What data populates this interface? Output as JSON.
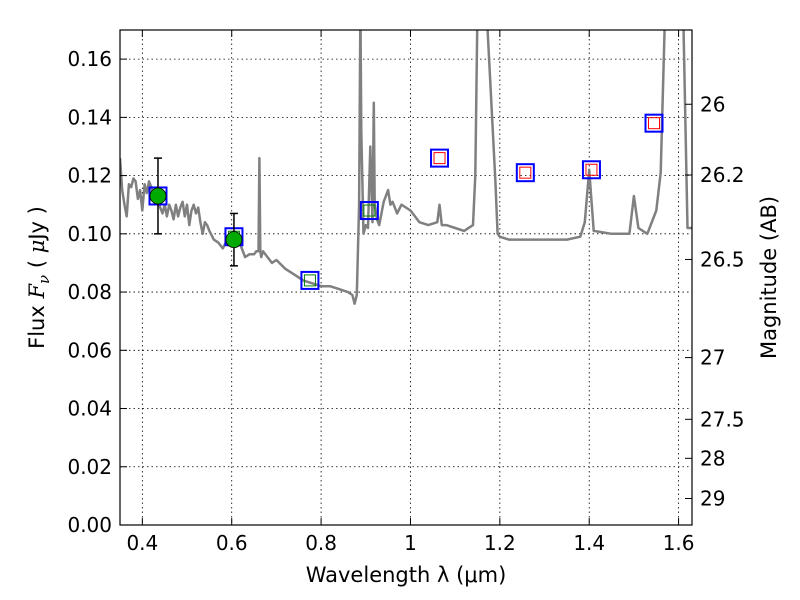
{
  "chart_data": {
    "type": "line",
    "xlabel": "Wavelength  λ (μm)",
    "ylabel": "Flux  F_ν  ( μJy )",
    "ylabel_parts": [
      "Flux  ",
      "F",
      "ν",
      "  ( ",
      "μ",
      "Jy )"
    ],
    "y2label": "Magnitude (AB)",
    "xlim": [
      0.35,
      1.63
    ],
    "ylim": [
      0.0,
      0.17
    ],
    "x_ticks": [
      0.4,
      0.6,
      0.8,
      1.0,
      1.2,
      1.4,
      1.6
    ],
    "x_tick_labels": [
      "0.4",
      "0.6",
      "0.8",
      "1",
      "1.2",
      "1.4",
      "1.6"
    ],
    "y_ticks": [
      0.0,
      0.02,
      0.04,
      0.06,
      0.08,
      0.1,
      0.12,
      0.14,
      0.16
    ],
    "y_tick_labels": [
      "0.00",
      "0.02",
      "0.04",
      "0.06",
      "0.08",
      "0.10",
      "0.12",
      "0.14",
      "0.16"
    ],
    "y2_ticks": [
      {
        "flux": 0.1445,
        "label": "26"
      },
      {
        "flux": 0.1202,
        "label": "26.2"
      },
      {
        "flux": 0.0912,
        "label": "26.5"
      },
      {
        "flux": 0.0575,
        "label": "27"
      },
      {
        "flux": 0.0363,
        "label": "27.5"
      },
      {
        "flux": 0.0229,
        "label": "28"
      },
      {
        "flux": 0.0091,
        "label": "29"
      }
    ],
    "grid": true,
    "colors": {
      "spectrum": "#808080",
      "observed_fill": "#00aa00",
      "model_box": "#0000ff",
      "model_box_fill": "#ffffff",
      "inner_green": "#008000",
      "inner_red": "#ff0000",
      "errorbar": "#000000"
    },
    "series": [
      {
        "kind": "spectrum",
        "x": [
          0.35,
          0.355,
          0.36,
          0.365,
          0.37,
          0.375,
          0.38,
          0.385,
          0.39,
          0.395,
          0.4,
          0.405,
          0.41,
          0.415,
          0.42,
          0.425,
          0.43,
          0.435,
          0.44,
          0.445,
          0.45,
          0.455,
          0.46,
          0.465,
          0.47,
          0.475,
          0.48,
          0.485,
          0.49,
          0.495,
          0.5,
          0.505,
          0.51,
          0.515,
          0.52,
          0.525,
          0.53,
          0.535,
          0.54,
          0.545,
          0.55,
          0.56,
          0.57,
          0.58,
          0.59,
          0.6,
          0.61,
          0.62,
          0.63,
          0.64,
          0.65,
          0.655,
          0.66,
          0.662,
          0.664,
          0.666,
          0.67,
          0.68,
          0.69,
          0.7,
          0.72,
          0.74,
          0.76,
          0.78,
          0.8,
          0.82,
          0.84,
          0.86,
          0.87,
          0.875,
          0.88,
          0.885,
          0.888,
          0.89,
          0.895,
          0.9,
          0.905,
          0.91,
          0.915,
          0.918,
          0.92,
          0.925,
          0.93,
          0.94,
          0.95,
          0.955,
          0.96,
          0.97,
          0.98,
          1.0,
          1.02,
          1.04,
          1.06,
          1.065,
          1.07,
          1.08,
          1.1,
          1.12,
          1.14,
          1.145,
          1.15,
          1.16,
          1.17,
          1.19,
          1.195,
          1.2,
          1.22,
          1.25,
          1.3,
          1.35,
          1.38,
          1.39,
          1.4,
          1.41,
          1.45,
          1.48,
          1.49,
          1.5,
          1.51,
          1.53,
          1.55,
          1.56,
          1.57,
          1.59,
          1.6,
          1.61,
          1.62,
          1.63
        ],
        "y": [
          0.126,
          0.115,
          0.11,
          0.106,
          0.117,
          0.116,
          0.119,
          0.118,
          0.112,
          0.115,
          0.108,
          0.117,
          0.114,
          0.118,
          0.116,
          0.113,
          0.114,
          0.112,
          0.109,
          0.107,
          0.11,
          0.106,
          0.11,
          0.108,
          0.105,
          0.11,
          0.106,
          0.109,
          0.111,
          0.106,
          0.11,
          0.103,
          0.108,
          0.11,
          0.107,
          0.109,
          0.104,
          0.1,
          0.104,
          0.103,
          0.101,
          0.098,
          0.097,
          0.095,
          0.098,
          0.1,
          0.097,
          0.096,
          0.092,
          0.093,
          0.093,
          0.094,
          0.094,
          0.126,
          0.094,
          0.092,
          0.094,
          0.092,
          0.09,
          0.091,
          0.088,
          0.086,
          0.084,
          0.083,
          0.082,
          0.082,
          0.081,
          0.08,
          0.079,
          0.076,
          0.079,
          0.11,
          0.178,
          0.135,
          0.1,
          0.103,
          0.102,
          0.13,
          0.104,
          0.145,
          0.11,
          0.105,
          0.103,
          0.111,
          0.115,
          0.11,
          0.111,
          0.107,
          0.11,
          0.108,
          0.104,
          0.103,
          0.104,
          0.11,
          0.103,
          0.103,
          0.102,
          0.101,
          0.103,
          0.12,
          0.178,
          0.175,
          0.178,
          0.118,
          0.1,
          0.099,
          0.098,
          0.098,
          0.098,
          0.098,
          0.099,
          0.104,
          0.122,
          0.101,
          0.1,
          0.1,
          0.1,
          0.113,
          0.102,
          0.1,
          0.108,
          0.121,
          0.178,
          0.172,
          0.178,
          0.178,
          0.102,
          0.102
        ]
      },
      {
        "kind": "observed",
        "x": [
          0.435,
          0.605
        ],
        "y": [
          0.113,
          0.098
        ],
        "yerr": [
          0.013,
          0.009
        ]
      },
      {
        "kind": "model_green",
        "x": [
          0.435,
          0.605,
          0.775,
          0.908
        ],
        "y": [
          0.113,
          0.099,
          0.084,
          0.108
        ]
      },
      {
        "kind": "model_red",
        "x": [
          1.065,
          1.257,
          1.405,
          1.545
        ],
        "y": [
          0.126,
          0.121,
          0.122,
          0.138
        ]
      }
    ]
  }
}
